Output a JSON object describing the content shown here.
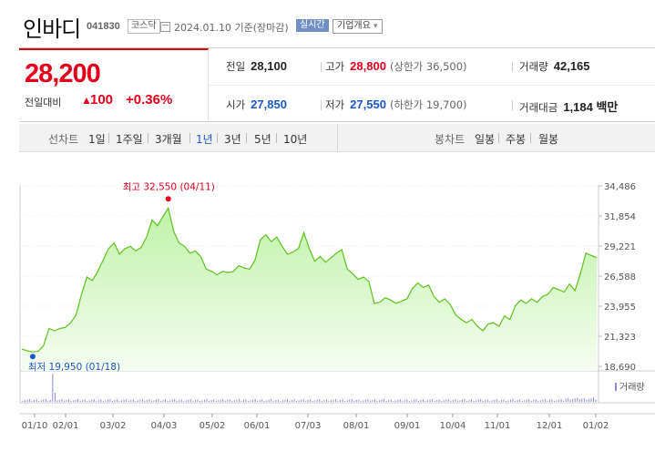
{
  "header": {
    "stock_name": "인바디",
    "stock_code": "041830",
    "market": "코스닥",
    "date": "2024.01.10 기준(장마감)",
    "realtime_label": "실시간",
    "company_info_label": "기업개요",
    "dropdown_arrow": "▾"
  },
  "quote": {
    "price": "28,200",
    "change_label": "전일대비",
    "change_direction_glyph": "▲",
    "change_value": "100",
    "change_pct": "+0.36%",
    "prev_close_label": "전일",
    "prev_close": "28,100",
    "high_label": "고가",
    "high": "28,800",
    "upper_limit": "(상한가 36,500)",
    "volume_label": "거래량",
    "volume": "42,165",
    "open_label": "시가",
    "open": "27,850",
    "low_label": "저가",
    "low": "27,550",
    "lower_limit": "(하한가 19,700)",
    "amount_label": "거래대금",
    "amount": "1,184 백만"
  },
  "periods": {
    "line_label": "선차트",
    "line_items": [
      "1일",
      "1주일",
      "3개월",
      "1년",
      "3년",
      "5년",
      "10년"
    ],
    "active": "1년",
    "candle_label": "봉차트",
    "candle_items": [
      "일봉",
      "주봉",
      "월봉"
    ]
  },
  "chart_data": {
    "type": "area",
    "y_ticks": [
      "34,486",
      "31,854",
      "29,221",
      "26,588",
      "23,955",
      "21,323",
      "18,690"
    ],
    "ylim": [
      18690,
      34486
    ],
    "x_ticks": [
      "01/10",
      "02/01",
      "03/02",
      "04/03",
      "05/02",
      "06/01",
      "07/03",
      "08/01",
      "09/01",
      "10/04",
      "11/01",
      "12/01",
      "01/02"
    ],
    "series": [
      {
        "values": [
          20200,
          20050,
          19950,
          20000,
          20500,
          22000,
          21800,
          22000,
          22100,
          22500,
          23200,
          25000,
          26500,
          26200,
          27000,
          28000,
          29000,
          29500,
          28500,
          29000,
          29200,
          28800,
          29100,
          30000,
          31500,
          31000,
          31800,
          32550,
          30500,
          29500,
          29200,
          28600,
          28800,
          28300,
          27200,
          27000,
          26700,
          27000,
          26900,
          27000,
          27500,
          27300,
          27200,
          28000,
          29800,
          30200,
          29600,
          30000,
          29200,
          28500,
          28700,
          29000,
          30400,
          29000,
          27900,
          28300,
          27800,
          28200,
          28600,
          28900,
          27200,
          26800,
          26300,
          26500,
          26100,
          24200,
          24300,
          24700,
          24500,
          24200,
          24400,
          24600,
          25500,
          26000,
          25600,
          25800,
          24800,
          24300,
          24600,
          24100,
          23200,
          22800,
          22500,
          22800,
          22200,
          21800,
          22400,
          22500,
          22200,
          23100,
          22800,
          24000,
          24500,
          24200,
          24600,
          24300,
          24800,
          25000,
          25600,
          25400,
          25200,
          25900,
          25300,
          26800,
          28600,
          28400,
          28200
        ]
      }
    ],
    "max_annotation": "최고 32,550 (04/11)",
    "min_annotation": "최저 19,950 (01/18)",
    "volume_label": "거래량",
    "line_color": "#5fc21e",
    "fill_top_color": "#bff2a8",
    "fill_bottom_color": "#f6fdf2",
    "max_marker_color": "#e4001b",
    "min_marker_color": "#1b57c4"
  }
}
